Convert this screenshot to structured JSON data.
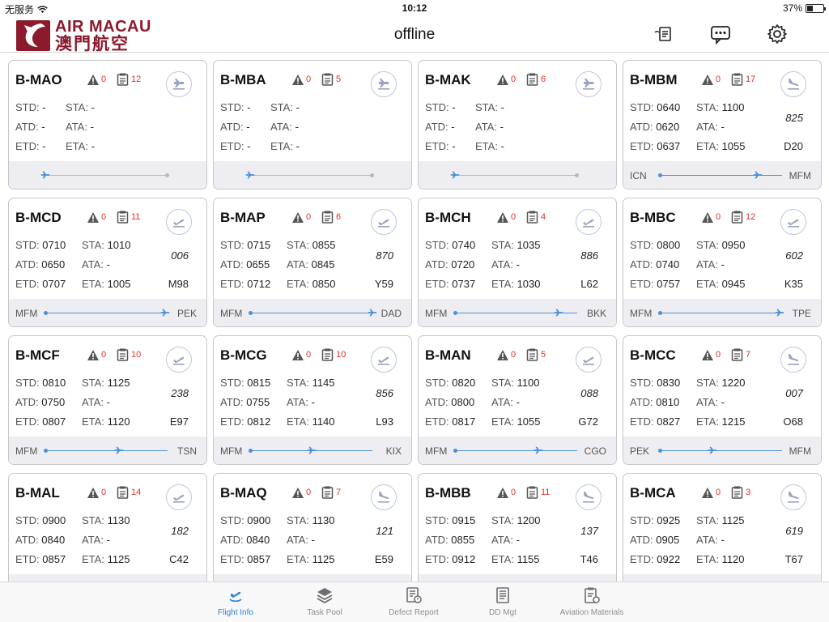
{
  "status": {
    "carrier": "无服务",
    "time": "10:12",
    "battery": "37%"
  },
  "header": {
    "logo_en": "AIR MACAU",
    "logo_zh": "澳門航空",
    "title": "offline",
    "icons": [
      "handover-icon",
      "message-icon",
      "settings-icon"
    ]
  },
  "cards": [
    {
      "reg": "B-MAO",
      "warn": "0",
      "tasks": "12",
      "dir": "arrival",
      "std": "-",
      "sta": "-",
      "atd": "-",
      "ata": "-",
      "etd": "-",
      "eta": "-",
      "flight": "",
      "gate": "",
      "orig": "",
      "dest": "",
      "progress": 0.0
    },
    {
      "reg": "B-MBA",
      "warn": "0",
      "tasks": "5",
      "dir": "arrival",
      "std": "-",
      "sta": "-",
      "atd": "-",
      "ata": "-",
      "etd": "-",
      "eta": "-",
      "flight": "",
      "gate": "",
      "orig": "",
      "dest": "",
      "progress": 0.0
    },
    {
      "reg": "B-MAK",
      "warn": "0",
      "tasks": "6",
      "dir": "arrival",
      "std": "-",
      "sta": "-",
      "atd": "-",
      "ata": "-",
      "etd": "-",
      "eta": "-",
      "flight": "",
      "gate": "",
      "orig": "",
      "dest": "",
      "progress": 0.0
    },
    {
      "reg": "B-MBM",
      "warn": "0",
      "tasks": "17",
      "dir": "landing",
      "std": "0640",
      "sta": "1100",
      "atd": "0620",
      "ata": "-",
      "etd": "0637",
      "eta": "1055",
      "flight": "825",
      "gate": "D20",
      "orig": "ICN",
      "dest": "MFM",
      "progress": 0.8
    },
    {
      "reg": "B-MCD",
      "warn": "0",
      "tasks": "11",
      "dir": "departure",
      "std": "0710",
      "sta": "1010",
      "atd": "0650",
      "ata": "-",
      "etd": "0707",
      "eta": "1005",
      "flight": "006",
      "gate": "M98",
      "orig": "MFM",
      "dest": "PEK",
      "progress": 0.98
    },
    {
      "reg": "B-MAP",
      "warn": "0",
      "tasks": "6",
      "dir": "departure",
      "std": "0715",
      "sta": "0855",
      "atd": "0655",
      "ata": "0845",
      "etd": "0712",
      "eta": "0850",
      "flight": "870",
      "gate": "Y59",
      "orig": "MFM",
      "dest": "DAD",
      "progress": 1.0
    },
    {
      "reg": "B-MCH",
      "warn": "0",
      "tasks": "4",
      "dir": "departure",
      "std": "0740",
      "sta": "1035",
      "atd": "0720",
      "ata": "-",
      "etd": "0737",
      "eta": "1030",
      "flight": "886",
      "gate": "L62",
      "orig": "MFM",
      "dest": "BKK",
      "progress": 0.85
    },
    {
      "reg": "B-MBC",
      "warn": "0",
      "tasks": "12",
      "dir": "departure",
      "std": "0800",
      "sta": "0950",
      "atd": "0740",
      "ata": "-",
      "etd": "0757",
      "eta": "0945",
      "flight": "602",
      "gate": "K35",
      "orig": "MFM",
      "dest": "TPE",
      "progress": 0.98
    },
    {
      "reg": "B-MCF",
      "warn": "0",
      "tasks": "10",
      "dir": "departure",
      "std": "0810",
      "sta": "1125",
      "atd": "0750",
      "ata": "-",
      "etd": "0807",
      "eta": "1120",
      "flight": "238",
      "gate": "E97",
      "orig": "MFM",
      "dest": "TSN",
      "progress": 0.6
    },
    {
      "reg": "B-MCG",
      "warn": "0",
      "tasks": "10",
      "dir": "departure",
      "std": "0815",
      "sta": "1145",
      "atd": "0755",
      "ata": "-",
      "etd": "0812",
      "eta": "1140",
      "flight": "856",
      "gate": "L93",
      "orig": "MFM",
      "dest": "KIX",
      "progress": 0.5
    },
    {
      "reg": "B-MAN",
      "warn": "0",
      "tasks": "5",
      "dir": "departure",
      "std": "0820",
      "sta": "1100",
      "atd": "0800",
      "ata": "-",
      "etd": "0817",
      "eta": "1055",
      "flight": "088",
      "gate": "G72",
      "orig": "MFM",
      "dest": "CGO",
      "progress": 0.68
    },
    {
      "reg": "B-MCC",
      "warn": "0",
      "tasks": "7",
      "dir": "landing",
      "std": "0830",
      "sta": "1220",
      "atd": "0810",
      "ata": "-",
      "etd": "0827",
      "eta": "1215",
      "flight": "007",
      "gate": "O68",
      "orig": "PEK",
      "dest": "MFM",
      "progress": 0.43
    },
    {
      "reg": "B-MAL",
      "warn": "0",
      "tasks": "14",
      "dir": "departure",
      "std": "0900",
      "sta": "1130",
      "atd": "0840",
      "ata": "-",
      "etd": "0857",
      "eta": "1125",
      "flight": "182",
      "gate": "C42",
      "orig": "",
      "dest": "",
      "progress": 0.0
    },
    {
      "reg": "B-MAQ",
      "warn": "0",
      "tasks": "7",
      "dir": "landing",
      "std": "0900",
      "sta": "1130",
      "atd": "0840",
      "ata": "-",
      "etd": "0857",
      "eta": "1125",
      "flight": "121",
      "gate": "E59",
      "orig": "",
      "dest": "",
      "progress": 0.0
    },
    {
      "reg": "B-MBB",
      "warn": "0",
      "tasks": "11",
      "dir": "landing",
      "std": "0915",
      "sta": "1200",
      "atd": "0855",
      "ata": "-",
      "etd": "0912",
      "eta": "1155",
      "flight": "137",
      "gate": "T46",
      "orig": "",
      "dest": "",
      "progress": 0.0
    },
    {
      "reg": "B-MCA",
      "warn": "0",
      "tasks": "3",
      "dir": "circle",
      "std": "0925",
      "sta": "1125",
      "atd": "0905",
      "ata": "-",
      "etd": "0922",
      "eta": "1120",
      "flight": "619",
      "gate": "T67",
      "orig": "",
      "dest": "",
      "progress": 0.0
    }
  ],
  "labels": {
    "std": "STD:",
    "sta": "STA:",
    "atd": "ATD:",
    "ata": "ATA:",
    "etd": "ETD:",
    "eta": "ETA:"
  },
  "tabs": [
    {
      "label": "Flight Info",
      "icon": "flight-info-icon",
      "active": true
    },
    {
      "label": "Task Pool",
      "icon": "task-pool-icon",
      "active": false
    },
    {
      "label": "Defect Report",
      "icon": "defect-report-icon",
      "active": false
    },
    {
      "label": "DD Mgt",
      "icon": "dd-mgt-icon",
      "active": false
    },
    {
      "label": "Aviation Materials",
      "icon": "aviation-materials-icon",
      "active": false
    }
  ],
  "colors": {
    "brand": "#8b1a2d",
    "accent": "#2e82d8",
    "alert": "#e0302a",
    "track": "#4a90d9"
  }
}
